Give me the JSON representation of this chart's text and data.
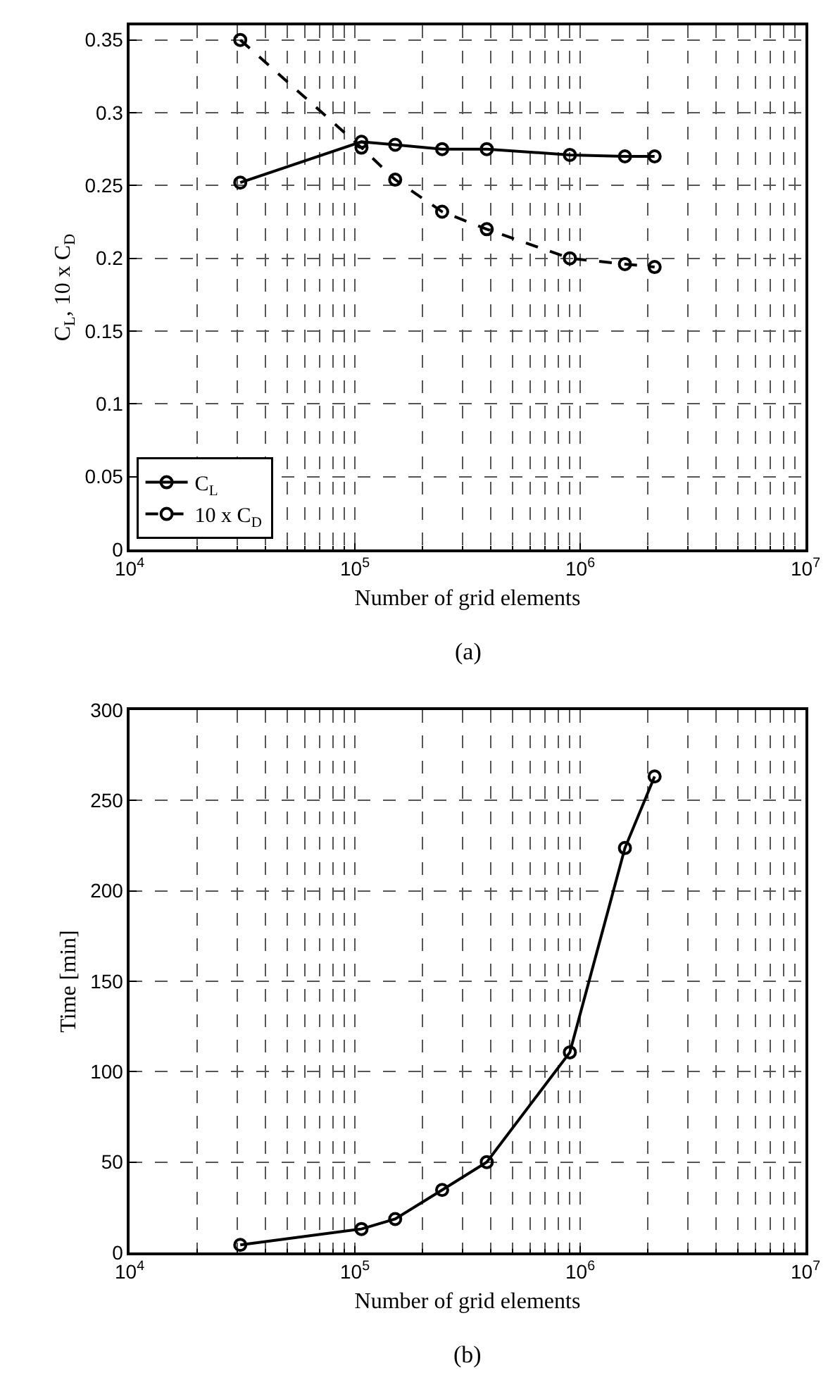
{
  "chart_data": [
    {
      "type": "line",
      "xlabel": "Number of grid elements",
      "ylabel": "C$_{L}$, 10 x C$_{D}$",
      "annotations": [
        "(a)"
      ],
      "log": "x",
      "grid": true,
      "legend": "bottom left",
      "marker": "circle",
      "xlim": [
        10000,
        10000000
      ],
      "xticks": [
        {
          "value": 10000,
          "label": "10$^{4}$"
        },
        {
          "value": 100000,
          "label": "10$^{5}$"
        },
        {
          "value": 1000000,
          "label": "10$^{6}$"
        },
        {
          "value": 10000000,
          "label": "10$^{7}$"
        }
      ],
      "ylim": [
        0,
        0.36
      ],
      "yticks": [
        0,
        0.05,
        0.1,
        0.15,
        0.2,
        0.25,
        0.3,
        0.35
      ],
      "x": [
        31000,
        107000,
        151000,
        244000,
        385000,
        900000,
        1580000,
        2140000
      ],
      "series": [
        {
          "name": "C$_{L}$",
          "color": "#000000",
          "line_style": "solid",
          "values": [
            0.252,
            0.28,
            0.278,
            0.275,
            0.275,
            0.271,
            0.27,
            0.27
          ]
        },
        {
          "name": "10 x C$_{D}$",
          "color": "#000000",
          "line_style": "dashed",
          "values": [
            0.35,
            0.276,
            0.254,
            0.232,
            0.22,
            0.2,
            0.196,
            0.194
          ]
        }
      ]
    },
    {
      "type": "line",
      "xlabel": "Number of grid elements",
      "ylabel": "Time [min]",
      "annotations": [
        "(b)"
      ],
      "log": "x",
      "grid": true,
      "marker": "circle",
      "xlim": [
        10000,
        10000000
      ],
      "xticks": [
        {
          "value": 10000,
          "label": "10$^{4}$"
        },
        {
          "value": 100000,
          "label": "10$^{5}$"
        },
        {
          "value": 1000000,
          "label": "10$^{6}$"
        },
        {
          "value": 10000000,
          "label": "10$^{7}$"
        }
      ],
      "ylim": [
        0,
        300
      ],
      "yticks": [
        0,
        50,
        100,
        150,
        200,
        250,
        300
      ],
      "x": [
        31000,
        107000,
        151000,
        244000,
        385000,
        900000,
        1580000,
        2140000
      ],
      "series": [
        {
          "color": "#000000",
          "line_style": "solid",
          "values": [
            4.2,
            13,
            18.5,
            34.6,
            50,
            110.7,
            223.7,
            263.3
          ]
        }
      ]
    }
  ]
}
